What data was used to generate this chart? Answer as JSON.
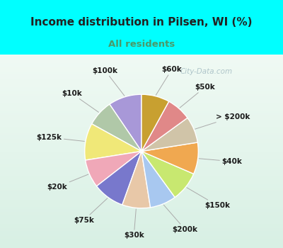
{
  "title": "Income distribution in Pilsen, WI (%)",
  "subtitle": "All residents",
  "title_color": "#222222",
  "subtitle_color": "#4a9a6a",
  "cyan_band_color": "#00ffff",
  "chart_bg_color": "#e8f8f0",
  "labels": [
    "$100k",
    "$10k",
    "$125k",
    "$20k",
    "$75k",
    "$30k",
    "$200k",
    "$150k",
    "$40k",
    "> $200k",
    "$50k",
    "$60k"
  ],
  "sizes": [
    9.5,
    7.5,
    10.5,
    8.0,
    9.0,
    8.0,
    7.5,
    8.5,
    9.0,
    7.5,
    7.0,
    8.0
  ],
  "colors": [
    "#a898d8",
    "#b0c8a8",
    "#f0e878",
    "#f0a8b8",
    "#7878cc",
    "#e8c8a8",
    "#a8c8f0",
    "#c8e870",
    "#f0a850",
    "#d0c4a8",
    "#e08888",
    "#c8a030"
  ],
  "wedge_linewidth": 1.0,
  "wedge_linecolor": "#ffffff",
  "startangle": 90,
  "label_fontsize": 7.5,
  "title_fontsize": 11,
  "subtitle_fontsize": 9.5,
  "watermark_text": "City-Data.com",
  "watermark_color": "#a0b8c0",
  "watermark_alpha": 0.8
}
